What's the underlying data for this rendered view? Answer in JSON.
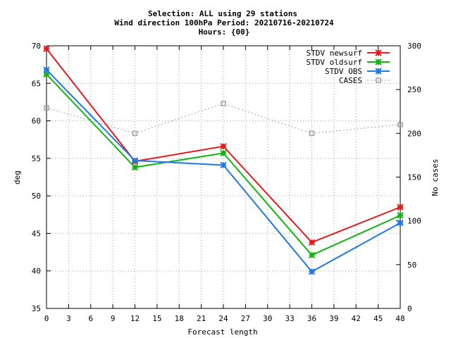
{
  "chart_data": {
    "type": "line",
    "title_lines": [
      "Selection: ALL using    29 stations",
      "Wind direction 100hPa   Period: 20210716-20210724",
      "Hours: {00}"
    ],
    "xlabel": "Forecast length",
    "ylabel": "deg",
    "y2label": "No cases",
    "xlim": [
      0,
      48
    ],
    "xticks": [
      0,
      3,
      6,
      9,
      12,
      15,
      18,
      21,
      24,
      27,
      30,
      33,
      36,
      39,
      42,
      45,
      48
    ],
    "ylim": [
      35,
      70
    ],
    "yticks": [
      35,
      40,
      45,
      50,
      55,
      60,
      65,
      70
    ],
    "y2lim": [
      0,
      300
    ],
    "y2ticks": [
      0,
      50,
      100,
      150,
      200,
      250,
      300
    ],
    "grid": true,
    "legend_position": "top-right",
    "x": [
      0,
      12,
      24,
      36,
      48
    ],
    "series": [
      {
        "name": "STDV newsurf",
        "color": "#e41a1c",
        "axis": "left",
        "style": "solid",
        "marker": "star",
        "values": [
          69.6,
          54.6,
          56.6,
          43.8,
          48.5
        ]
      },
      {
        "name": "STDV oldsurf",
        "color": "#11b511",
        "axis": "left",
        "style": "solid",
        "marker": "star",
        "values": [
          66.2,
          53.8,
          55.7,
          42.1,
          47.4
        ]
      },
      {
        "name": "STDV OBS",
        "color": "#1f78e4",
        "axis": "left",
        "style": "solid",
        "marker": "star",
        "values": [
          66.8,
          54.7,
          54.1,
          39.9,
          46.4
        ]
      },
      {
        "name": "CASES",
        "color": "#a0a0a0",
        "axis": "right",
        "style": "dotted",
        "marker": "square",
        "values": [
          229,
          200,
          234,
          200,
          210
        ]
      }
    ]
  }
}
